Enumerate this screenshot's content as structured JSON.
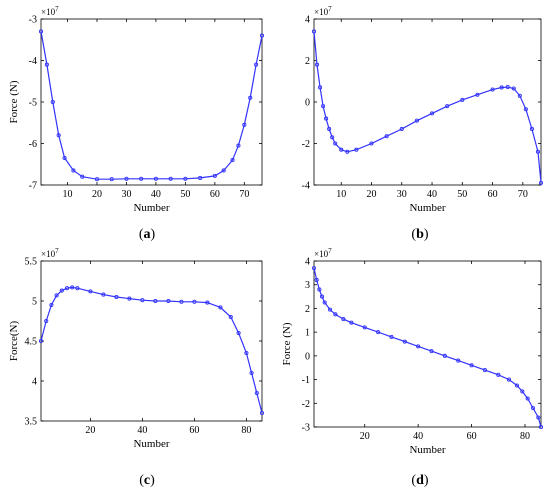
{
  "figure": {
    "captions": [
      {
        "open": "(",
        "letter": "a",
        "close": ")"
      },
      {
        "open": "(",
        "letter": "b",
        "close": ")"
      },
      {
        "open": "(",
        "letter": "c",
        "close": ")"
      },
      {
        "open": "(",
        "letter": "d",
        "close": ")"
      }
    ]
  },
  "chart_data": [
    {
      "type": "line",
      "panel": "a",
      "xlabel": "Number",
      "ylabel": "Force (N)",
      "exponent": {
        "base": "×10",
        "power": "7"
      },
      "xlim": [
        1,
        76
      ],
      "ylim": [
        -7,
        -3
      ],
      "xticks": [
        10,
        20,
        30,
        40,
        50,
        60,
        70
      ],
      "yticks": [
        -3,
        -4,
        -5,
        -6,
        -7
      ],
      "grid": false,
      "color": "#3333ff",
      "series": [
        {
          "x": [
            1,
            3,
            5,
            7,
            9,
            12,
            15,
            20,
            25,
            30,
            35,
            40,
            45,
            50,
            55,
            60,
            63,
            66,
            68,
            70,
            72,
            74,
            76
          ],
          "y": [
            -3.3,
            -4.1,
            -5.0,
            -5.8,
            -6.35,
            -6.65,
            -6.8,
            -6.86,
            -6.86,
            -6.85,
            -6.85,
            -6.85,
            -6.85,
            -6.85,
            -6.83,
            -6.78,
            -6.65,
            -6.4,
            -6.05,
            -5.55,
            -4.9,
            -4.1,
            -3.4
          ]
        }
      ]
    },
    {
      "type": "line",
      "panel": "b",
      "xlabel": "Number",
      "ylabel": "",
      "exponent": {
        "base": "×10",
        "power": "7"
      },
      "xlim": [
        1,
        76
      ],
      "ylim": [
        -4,
        4
      ],
      "xticks": [
        10,
        20,
        30,
        40,
        50,
        60,
        70
      ],
      "yticks": [
        4,
        2,
        0,
        -2,
        -4
      ],
      "grid": false,
      "color": "#3333ff",
      "series": [
        {
          "x": [
            1,
            2,
            3,
            4,
            5,
            6,
            7,
            8,
            10,
            12,
            15,
            20,
            25,
            30,
            35,
            40,
            45,
            50,
            55,
            60,
            63,
            65,
            67,
            69,
            71,
            73,
            75,
            76
          ],
          "y": [
            3.4,
            1.8,
            0.7,
            -0.2,
            -0.8,
            -1.3,
            -1.7,
            -2.0,
            -2.3,
            -2.4,
            -2.3,
            -2.0,
            -1.65,
            -1.3,
            -0.9,
            -0.55,
            -0.2,
            0.1,
            0.35,
            0.6,
            0.7,
            0.72,
            0.65,
            0.3,
            -0.35,
            -1.3,
            -2.4,
            -3.9
          ]
        }
      ]
    },
    {
      "type": "line",
      "panel": "c",
      "xlabel": "Number",
      "ylabel": "Force(N)",
      "exponent": {
        "base": "×10",
        "power": "7"
      },
      "xlim": [
        1,
        86
      ],
      "ylim": [
        3.5,
        5.5
      ],
      "xticks": [
        20,
        40,
        60,
        80
      ],
      "yticks": [
        5.5,
        5,
        4.5,
        4,
        3.5
      ],
      "grid": false,
      "color": "#3333ff",
      "series": [
        {
          "x": [
            1,
            3,
            5,
            7,
            9,
            11,
            13,
            15,
            20,
            25,
            30,
            35,
            40,
            45,
            50,
            55,
            60,
            65,
            70,
            74,
            77,
            80,
            82,
            84,
            86
          ],
          "y": [
            4.5,
            4.75,
            4.95,
            5.07,
            5.13,
            5.16,
            5.17,
            5.16,
            5.12,
            5.08,
            5.05,
            5.03,
            5.01,
            5.0,
            5.0,
            4.99,
            4.99,
            4.98,
            4.92,
            4.8,
            4.6,
            4.35,
            4.1,
            3.85,
            3.6
          ]
        }
      ]
    },
    {
      "type": "line",
      "panel": "d",
      "xlabel": "Number",
      "ylabel": "Force (N)",
      "exponent": {
        "base": "×10",
        "power": "7"
      },
      "xlim": [
        1,
        86
      ],
      "ylim": [
        -3,
        4
      ],
      "xticks": [
        20,
        40,
        60,
        80
      ],
      "yticks": [
        4,
        3,
        2,
        1,
        0,
        -1,
        -2,
        -3
      ],
      "grid": false,
      "color": "#3333ff",
      "series": [
        {
          "x": [
            1,
            2,
            3,
            4,
            5,
            7,
            9,
            12,
            15,
            20,
            25,
            30,
            35,
            40,
            45,
            50,
            55,
            60,
            65,
            70,
            74,
            77,
            79,
            81,
            83,
            85,
            86
          ],
          "y": [
            3.7,
            3.2,
            2.8,
            2.5,
            2.25,
            1.95,
            1.75,
            1.55,
            1.4,
            1.2,
            1.0,
            0.8,
            0.6,
            0.4,
            0.2,
            0.0,
            -0.2,
            -0.4,
            -0.6,
            -0.8,
            -1.0,
            -1.25,
            -1.5,
            -1.8,
            -2.2,
            -2.6,
            -3.0
          ]
        }
      ]
    }
  ]
}
